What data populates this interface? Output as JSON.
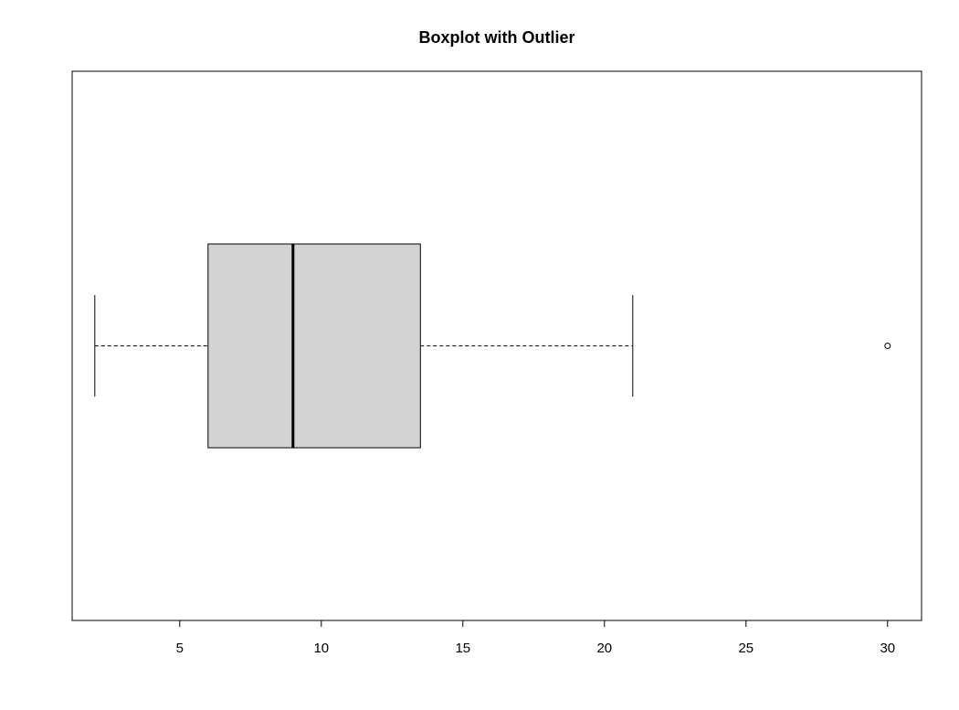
{
  "chart_data": {
    "type": "boxplot",
    "orientation": "horizontal",
    "title": "Boxplot with Outlier",
    "xlabel": "",
    "ylabel": "",
    "xlim": [
      1.2,
      31.2
    ],
    "ticks": [
      5,
      10,
      15,
      20,
      25,
      30
    ],
    "tick_labels": [
      "5",
      "10",
      "15",
      "20",
      "25",
      "30"
    ],
    "box": {
      "whisker_low": 2,
      "q1": 6,
      "median": 9,
      "q3": 13.5,
      "whisker_high": 21,
      "outliers": [
        30
      ]
    },
    "grid": false,
    "colors": {
      "box_fill": "#d3d3d3",
      "stroke": "#000000"
    }
  }
}
